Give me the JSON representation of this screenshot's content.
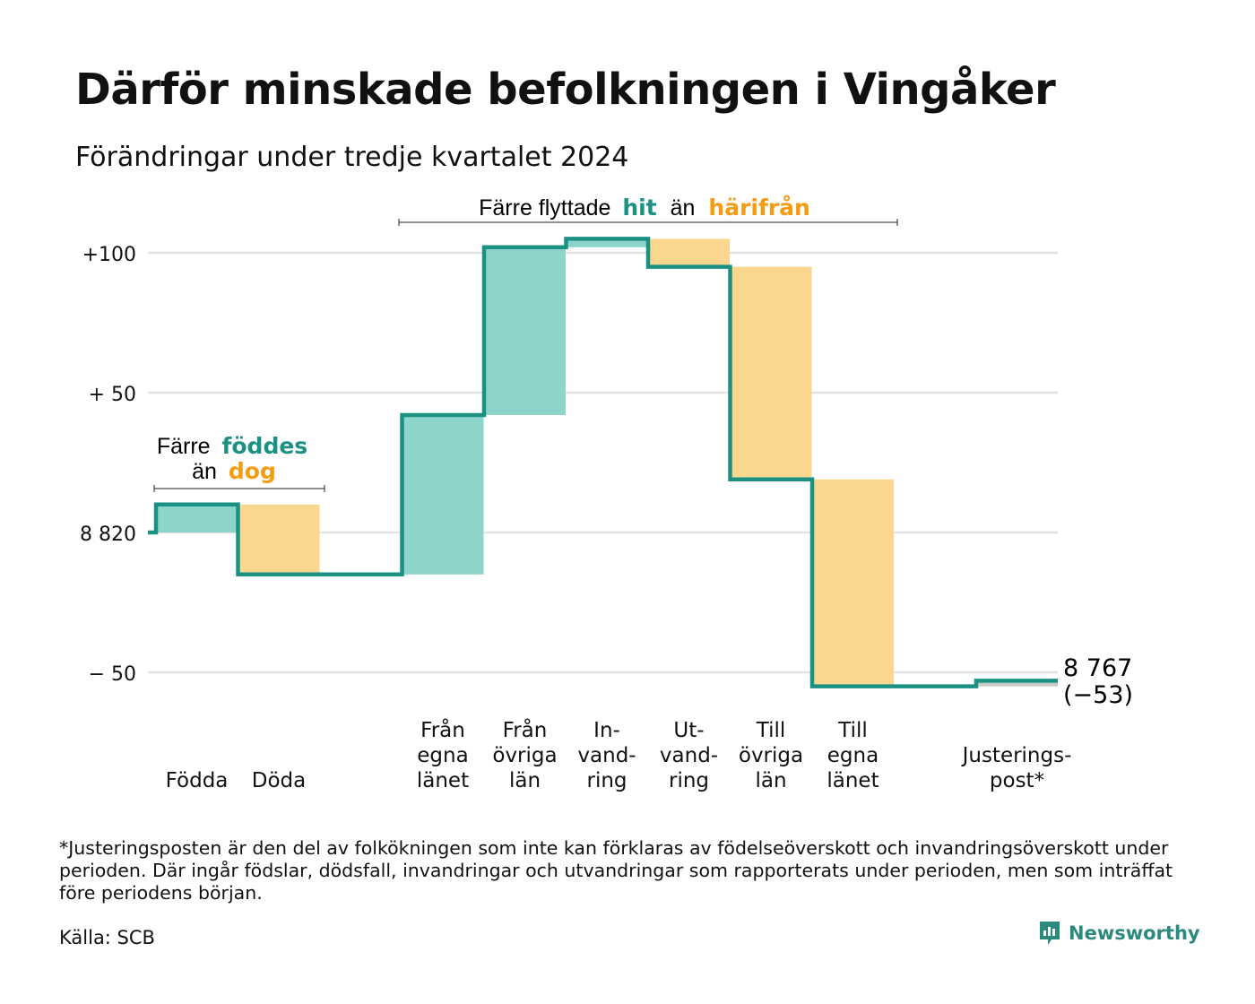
{
  "title": "Därför minskade befolkningen i Vingåker",
  "subtitle": "Förändringar under tredje kvartalet 2024",
  "colors": {
    "increase": "#8dd4cb",
    "decrease": "#fad68e",
    "line": "#1a9183",
    "accent_increase_text": "#1a9183",
    "accent_decrease_text": "#f39c12",
    "gridline": "#e3e3e3",
    "adjustment": "#c9c9c9"
  },
  "annotations": {
    "births_deaths": {
      "line1_prefix": "Färre",
      "line1_highlight": "föddes",
      "line2_prefix": "än",
      "line2_highlight": "dog"
    },
    "migration": {
      "prefix": "Färre flyttade",
      "highlight_in": "hit",
      "middle": "än",
      "highlight_out": "härifrån"
    }
  },
  "end_label": {
    "value": "8 767",
    "change": "(−53)"
  },
  "footnote": "*Justeringsposten är den del av folkökningen som inte kan förklaras av födelseöverskott och invandringsöverskott under perioden. Där ingår födslar, dödsfall, invandringar och utvandringar som rapporterats under perioden, men som inträffat före periodens början.",
  "source": "Källa: SCB",
  "brand": "Newsworthy",
  "chart_data": {
    "type": "waterfall",
    "title": "Därför minskade befolkningen i Vingåker",
    "subtitle": "Förändringar under tredje kvartalet 2024",
    "start_population": 8820,
    "end_population": 8767,
    "net_change": -53,
    "y_ticks": [
      {
        "value": 100,
        "label": "+100"
      },
      {
        "value": 50,
        "label": "+ 50"
      },
      {
        "value": 0,
        "label": "8 820"
      },
      {
        "value": -50,
        "label": "−  50"
      }
    ],
    "ylim": [
      -58,
      120
    ],
    "grid": true,
    "categories": [
      {
        "label_lines": [
          "Födda"
        ],
        "value": 10,
        "slot": 0
      },
      {
        "label_lines": [
          "Döda"
        ],
        "value": -25,
        "slot": 1
      },
      {
        "label_lines": [
          "Från",
          "egna",
          "länet"
        ],
        "value": 57,
        "slot": 3
      },
      {
        "label_lines": [
          "Från",
          "övriga",
          "län"
        ],
        "value": 60,
        "slot": 4
      },
      {
        "label_lines": [
          "In-",
          "vand-",
          "ring"
        ],
        "value": 3,
        "slot": 5
      },
      {
        "label_lines": [
          "Ut-",
          "vand-",
          "ring"
        ],
        "value": -10,
        "slot": 6
      },
      {
        "label_lines": [
          "Till",
          "övriga",
          "län"
        ],
        "value": -76,
        "slot": 7
      },
      {
        "label_lines": [
          "Till",
          "egna",
          "länet"
        ],
        "value": -74,
        "slot": 8
      },
      {
        "label_lines": [
          "Justerings-",
          "post*"
        ],
        "value": 2,
        "slot": 10
      }
    ]
  }
}
